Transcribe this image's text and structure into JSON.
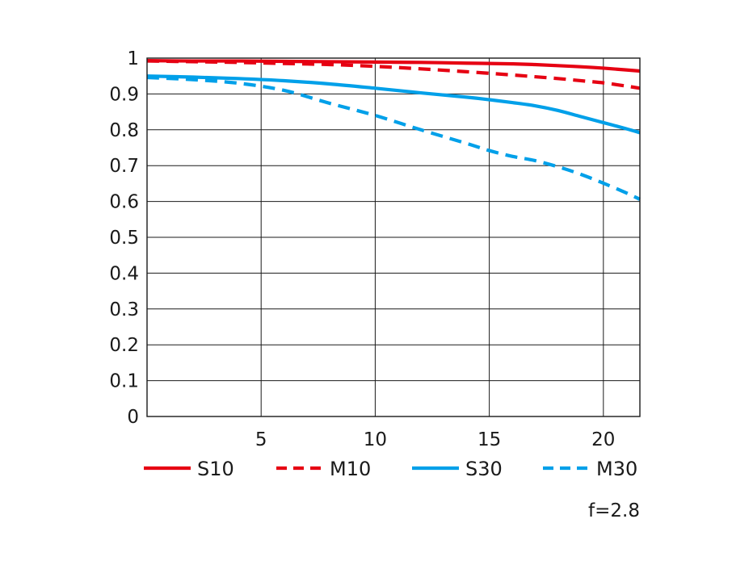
{
  "chart_data": {
    "type": "line",
    "xlim": [
      0,
      21.6
    ],
    "ylim": [
      0,
      1
    ],
    "x_ticks": [
      "5",
      "10",
      "15",
      "20"
    ],
    "y_ticks": [
      "0",
      "0.1",
      "0.2",
      "0.3",
      "0.4",
      "0.5",
      "0.6",
      "0.7",
      "0.8",
      "0.9",
      "1"
    ],
    "grid": true,
    "legend_position": "bottom",
    "annotation": "f=2.8",
    "series": [
      {
        "name": "S10",
        "color": "#e60012",
        "style": "solid",
        "x": [
          0,
          2,
          4,
          6,
          8,
          10,
          12,
          14,
          16,
          17,
          18,
          19,
          20,
          21,
          21.6
        ],
        "y": [
          0.993,
          0.992,
          0.992,
          0.991,
          0.99,
          0.989,
          0.988,
          0.986,
          0.984,
          0.982,
          0.979,
          0.976,
          0.972,
          0.967,
          0.964
        ]
      },
      {
        "name": "M10",
        "color": "#e60012",
        "style": "dashed",
        "x": [
          0,
          2,
          4,
          6,
          8,
          10,
          12,
          14,
          16,
          17,
          18,
          19,
          20,
          21,
          21.6
        ],
        "y": [
          0.992,
          0.99,
          0.988,
          0.985,
          0.982,
          0.977,
          0.97,
          0.962,
          0.953,
          0.948,
          0.943,
          0.937,
          0.931,
          0.922,
          0.916
        ]
      },
      {
        "name": "S30",
        "color": "#00a0e9",
        "style": "solid",
        "x": [
          0,
          2,
          4,
          6,
          8,
          10,
          12,
          14,
          15,
          16,
          17,
          18,
          19,
          20,
          21,
          21.6
        ],
        "y": [
          0.95,
          0.947,
          0.943,
          0.937,
          0.928,
          0.916,
          0.903,
          0.891,
          0.884,
          0.876,
          0.867,
          0.854,
          0.837,
          0.82,
          0.803,
          0.792
        ]
      },
      {
        "name": "M30",
        "color": "#00a0e9",
        "style": "dashed",
        "x": [
          0,
          2,
          4,
          6,
          8,
          10,
          12,
          14,
          15,
          16,
          17,
          18,
          19,
          20,
          21,
          21.6
        ],
        "y": [
          0.946,
          0.94,
          0.93,
          0.91,
          0.874,
          0.84,
          0.8,
          0.762,
          0.742,
          0.726,
          0.714,
          0.697,
          0.676,
          0.651,
          0.624,
          0.606
        ]
      }
    ]
  }
}
